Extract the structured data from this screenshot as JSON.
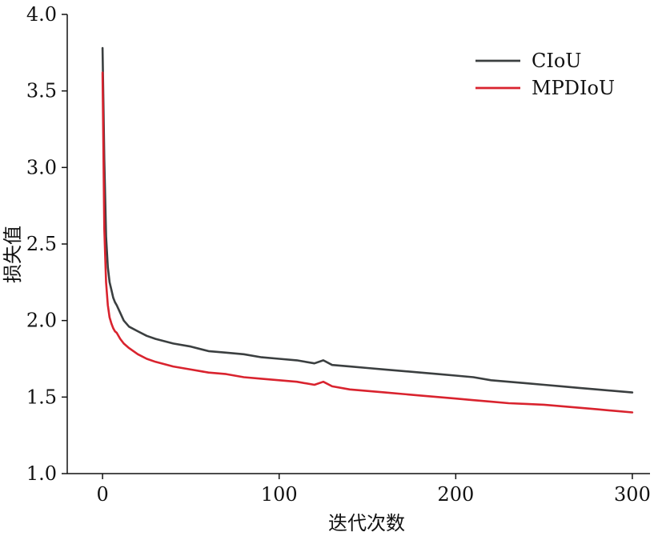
{
  "chart_data": {
    "type": "line",
    "title": "",
    "xlabel": "迭代次数",
    "ylabel": "损失值",
    "xlim": [
      -20,
      310
    ],
    "ylim": [
      1.0,
      4.0
    ],
    "x_ticks": [
      0,
      100,
      200,
      300
    ],
    "y_ticks": [
      1.0,
      1.5,
      2.0,
      2.5,
      3.0,
      3.5,
      4.0
    ],
    "x_tick_labels": [
      "0",
      "100",
      "200",
      "300"
    ],
    "y_tick_labels": [
      "1.0",
      "1.5",
      "2.0",
      "2.5",
      "3.0",
      "3.5",
      "4.0"
    ],
    "grid": false,
    "legend_position": "top-right",
    "series": [
      {
        "name": "CIoU",
        "color": "#3b3f40",
        "x": [
          0,
          1,
          2,
          3,
          4,
          5,
          6,
          7,
          8,
          10,
          12,
          15,
          20,
          25,
          30,
          40,
          50,
          60,
          70,
          80,
          90,
          100,
          110,
          120,
          125,
          130,
          140,
          150,
          160,
          170,
          180,
          190,
          200,
          210,
          220,
          230,
          240,
          250,
          260,
          270,
          280,
          290,
          300
        ],
        "y": [
          3.78,
          3.05,
          2.55,
          2.35,
          2.25,
          2.2,
          2.15,
          2.12,
          2.1,
          2.05,
          2.0,
          1.96,
          1.93,
          1.9,
          1.88,
          1.85,
          1.83,
          1.8,
          1.79,
          1.78,
          1.76,
          1.75,
          1.74,
          1.72,
          1.74,
          1.71,
          1.7,
          1.69,
          1.68,
          1.67,
          1.66,
          1.65,
          1.64,
          1.63,
          1.61,
          1.6,
          1.59,
          1.58,
          1.57,
          1.56,
          1.55,
          1.54,
          1.53
        ]
      },
      {
        "name": "MPDIoU",
        "color": "#d9232e",
        "x": [
          0,
          1,
          2,
          3,
          4,
          5,
          6,
          7,
          8,
          10,
          12,
          15,
          20,
          25,
          30,
          40,
          50,
          60,
          70,
          80,
          90,
          100,
          110,
          120,
          125,
          130,
          140,
          150,
          160,
          170,
          180,
          190,
          200,
          210,
          220,
          230,
          240,
          250,
          260,
          270,
          280,
          290,
          300
        ],
        "y": [
          3.62,
          2.6,
          2.25,
          2.1,
          2.02,
          1.98,
          1.95,
          1.93,
          1.92,
          1.88,
          1.85,
          1.82,
          1.78,
          1.75,
          1.73,
          1.7,
          1.68,
          1.66,
          1.65,
          1.63,
          1.62,
          1.61,
          1.6,
          1.58,
          1.6,
          1.57,
          1.55,
          1.54,
          1.53,
          1.52,
          1.51,
          1.5,
          1.49,
          1.48,
          1.47,
          1.46,
          1.455,
          1.45,
          1.44,
          1.43,
          1.42,
          1.41,
          1.4
        ]
      }
    ]
  }
}
